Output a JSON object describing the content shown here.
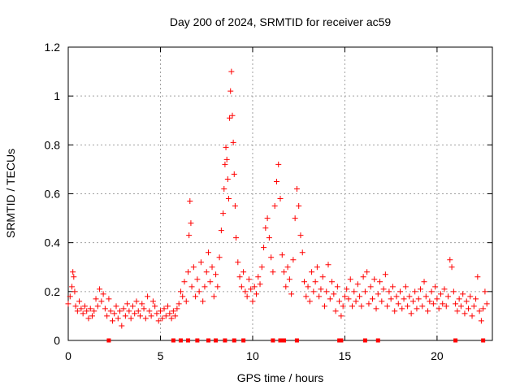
{
  "chart_data": {
    "type": "scatter",
    "title": "Day 200 of 2024, SRMTID for receiver ac59",
    "xlabel": "GPS time / hours",
    "ylabel": "SRMTID / TECUs",
    "xlim": [
      0,
      23
    ],
    "ylim": [
      0,
      1.2
    ],
    "xticks": [
      0,
      5,
      10,
      15,
      20
    ],
    "xtick_labels": [
      "0",
      "5",
      "10",
      "15",
      "20"
    ],
    "yticks": [
      0,
      0.2,
      0.4,
      0.6,
      0.8,
      1.0,
      1.2
    ],
    "ytick_labels": [
      "0",
      "0.2",
      "0.4",
      "0.6",
      "0.8",
      "1",
      "1.2"
    ],
    "grid": true,
    "marker": "+",
    "color": "#ff0000",
    "series": [
      {
        "name": "SRMTID",
        "points": [
          [
            0.0,
            0.15
          ],
          [
            0.1,
            0.18
          ],
          [
            0.2,
            0.22
          ],
          [
            0.25,
            0.28
          ],
          [
            0.3,
            0.26
          ],
          [
            0.35,
            0.2
          ],
          [
            0.4,
            0.14
          ],
          [
            0.5,
            0.12
          ],
          [
            0.6,
            0.16
          ],
          [
            0.7,
            0.13
          ],
          [
            0.8,
            0.11
          ],
          [
            0.9,
            0.14
          ],
          [
            1.0,
            0.12
          ],
          [
            1.1,
            0.09
          ],
          [
            1.2,
            0.13
          ],
          [
            1.3,
            0.1
          ],
          [
            1.4,
            0.12
          ],
          [
            1.5,
            0.17
          ],
          [
            1.6,
            0.14
          ],
          [
            1.7,
            0.21
          ],
          [
            1.8,
            0.16
          ],
          [
            1.9,
            0.19
          ],
          [
            2.0,
            0.13
          ],
          [
            2.1,
            0.1
          ],
          [
            2.2,
            0.17
          ],
          [
            2.3,
            0.12
          ],
          [
            2.4,
            0.08
          ],
          [
            2.5,
            0.11
          ],
          [
            2.6,
            0.14
          ],
          [
            2.7,
            0.09
          ],
          [
            2.8,
            0.12
          ],
          [
            2.9,
            0.06
          ],
          [
            3.0,
            0.13
          ],
          [
            3.1,
            0.1
          ],
          [
            3.2,
            0.15
          ],
          [
            3.3,
            0.12
          ],
          [
            3.4,
            0.09
          ],
          [
            3.5,
            0.14
          ],
          [
            3.6,
            0.11
          ],
          [
            3.7,
            0.16
          ],
          [
            3.8,
            0.12
          ],
          [
            3.9,
            0.1
          ],
          [
            4.0,
            0.15
          ],
          [
            4.1,
            0.13
          ],
          [
            4.2,
            0.09
          ],
          [
            4.3,
            0.18
          ],
          [
            4.4,
            0.12
          ],
          [
            4.5,
            0.1
          ],
          [
            4.6,
            0.16
          ],
          [
            4.7,
            0.14
          ],
          [
            4.8,
            0.11
          ],
          [
            4.9,
            0.08
          ],
          [
            5.0,
            0.12
          ],
          [
            5.1,
            0.09
          ],
          [
            5.2,
            0.13
          ],
          [
            5.3,
            0.1
          ],
          [
            5.4,
            0.14
          ],
          [
            5.5,
            0.11
          ],
          [
            5.6,
            0.09
          ],
          [
            5.7,
            0.12
          ],
          [
            5.8,
            0.1
          ],
          [
            5.9,
            0.13
          ],
          [
            6.0,
            0.15
          ],
          [
            6.1,
            0.2
          ],
          [
            6.2,
            0.18
          ],
          [
            6.3,
            0.24
          ],
          [
            6.4,
            0.16
          ],
          [
            6.5,
            0.28
          ],
          [
            6.55,
            0.43
          ],
          [
            6.6,
            0.57
          ],
          [
            6.65,
            0.48
          ],
          [
            6.7,
            0.22
          ],
          [
            6.8,
            0.3
          ],
          [
            6.9,
            0.18
          ],
          [
            7.0,
            0.25
          ],
          [
            7.1,
            0.2
          ],
          [
            7.2,
            0.32
          ],
          [
            7.3,
            0.16
          ],
          [
            7.4,
            0.22
          ],
          [
            7.5,
            0.28
          ],
          [
            7.6,
            0.36
          ],
          [
            7.7,
            0.24
          ],
          [
            7.8,
            0.3
          ],
          [
            7.9,
            0.18
          ],
          [
            8.0,
            0.27
          ],
          [
            8.1,
            0.22
          ],
          [
            8.2,
            0.34
          ],
          [
            8.3,
            0.45
          ],
          [
            8.4,
            0.52
          ],
          [
            8.45,
            0.62
          ],
          [
            8.5,
            0.72
          ],
          [
            8.55,
            0.79
          ],
          [
            8.6,
            0.74
          ],
          [
            8.65,
            0.66
          ],
          [
            8.7,
            0.58
          ],
          [
            8.75,
            0.91
          ],
          [
            8.8,
            1.02
          ],
          [
            8.85,
            1.1
          ],
          [
            8.9,
            0.92
          ],
          [
            8.95,
            0.81
          ],
          [
            9.0,
            0.68
          ],
          [
            9.05,
            0.55
          ],
          [
            9.1,
            0.42
          ],
          [
            9.2,
            0.32
          ],
          [
            9.3,
            0.26
          ],
          [
            9.4,
            0.22
          ],
          [
            9.5,
            0.28
          ],
          [
            9.6,
            0.2
          ],
          [
            9.7,
            0.18
          ],
          [
            9.8,
            0.25
          ],
          [
            9.9,
            0.21
          ],
          [
            10.0,
            0.16
          ],
          [
            10.1,
            0.22
          ],
          [
            10.2,
            0.19
          ],
          [
            10.3,
            0.26
          ],
          [
            10.4,
            0.23
          ],
          [
            10.5,
            0.3
          ],
          [
            10.6,
            0.38
          ],
          [
            10.7,
            0.46
          ],
          [
            10.8,
            0.5
          ],
          [
            10.9,
            0.42
          ],
          [
            11.0,
            0.34
          ],
          [
            11.1,
            0.28
          ],
          [
            11.2,
            0.55
          ],
          [
            11.3,
            0.65
          ],
          [
            11.4,
            0.72
          ],
          [
            11.5,
            0.58
          ],
          [
            11.6,
            0.35
          ],
          [
            11.7,
            0.28
          ],
          [
            11.8,
            0.22
          ],
          [
            11.9,
            0.3
          ],
          [
            12.0,
            0.25
          ],
          [
            12.1,
            0.19
          ],
          [
            12.2,
            0.33
          ],
          [
            12.3,
            0.5
          ],
          [
            12.4,
            0.62
          ],
          [
            12.5,
            0.55
          ],
          [
            12.6,
            0.43
          ],
          [
            12.7,
            0.36
          ],
          [
            12.8,
            0.24
          ],
          [
            12.9,
            0.18
          ],
          [
            13.0,
            0.22
          ],
          [
            13.1,
            0.16
          ],
          [
            13.2,
            0.28
          ],
          [
            13.3,
            0.2
          ],
          [
            13.4,
            0.24
          ],
          [
            13.5,
            0.3
          ],
          [
            13.6,
            0.18
          ],
          [
            13.7,
            0.21
          ],
          [
            13.8,
            0.26
          ],
          [
            13.9,
            0.14
          ],
          [
            14.0,
            0.2
          ],
          [
            14.1,
            0.31
          ],
          [
            14.2,
            0.17
          ],
          [
            14.3,
            0.24
          ],
          [
            14.4,
            0.19
          ],
          [
            14.5,
            0.12
          ],
          [
            14.6,
            0.22
          ],
          [
            14.7,
            0.16
          ],
          [
            14.8,
            0.1
          ],
          [
            14.9,
            0.14
          ],
          [
            15.0,
            0.18
          ],
          [
            15.1,
            0.21
          ],
          [
            15.2,
            0.17
          ],
          [
            15.3,
            0.25
          ],
          [
            15.4,
            0.14
          ],
          [
            15.5,
            0.2
          ],
          [
            15.6,
            0.16
          ],
          [
            15.7,
            0.23
          ],
          [
            15.8,
            0.18
          ],
          [
            15.9,
            0.14
          ],
          [
            16.0,
            0.26
          ],
          [
            16.1,
            0.2
          ],
          [
            16.2,
            0.28
          ],
          [
            16.3,
            0.15
          ],
          [
            16.4,
            0.22
          ],
          [
            16.5,
            0.17
          ],
          [
            16.6,
            0.25
          ],
          [
            16.7,
            0.13
          ],
          [
            16.8,
            0.19
          ],
          [
            16.9,
            0.24
          ],
          [
            17.0,
            0.16
          ],
          [
            17.1,
            0.21
          ],
          [
            17.2,
            0.27
          ],
          [
            17.3,
            0.14
          ],
          [
            17.4,
            0.2
          ],
          [
            17.5,
            0.17
          ],
          [
            17.6,
            0.22
          ],
          [
            17.7,
            0.12
          ],
          [
            17.8,
            0.18
          ],
          [
            17.9,
            0.15
          ],
          [
            18.0,
            0.2
          ],
          [
            18.1,
            0.13
          ],
          [
            18.2,
            0.17
          ],
          [
            18.3,
            0.22
          ],
          [
            18.4,
            0.14
          ],
          [
            18.5,
            0.18
          ],
          [
            18.6,
            0.11
          ],
          [
            18.7,
            0.16
          ],
          [
            18.8,
            0.2
          ],
          [
            18.9,
            0.13
          ],
          [
            19.0,
            0.17
          ],
          [
            19.1,
            0.21
          ],
          [
            19.2,
            0.14
          ],
          [
            19.3,
            0.24
          ],
          [
            19.4,
            0.18
          ],
          [
            19.5,
            0.12
          ],
          [
            19.6,
            0.16
          ],
          [
            19.7,
            0.2
          ],
          [
            19.8,
            0.15
          ],
          [
            19.9,
            0.22
          ],
          [
            20.0,
            0.17
          ],
          [
            20.1,
            0.13
          ],
          [
            20.2,
            0.19
          ],
          [
            20.3,
            0.15
          ],
          [
            20.4,
            0.21
          ],
          [
            20.5,
            0.14
          ],
          [
            20.6,
            0.18
          ],
          [
            20.7,
            0.33
          ],
          [
            20.8,
            0.3
          ],
          [
            20.9,
            0.2
          ],
          [
            21.0,
            0.15
          ],
          [
            21.1,
            0.12
          ],
          [
            21.2,
            0.17
          ],
          [
            21.3,
            0.14
          ],
          [
            21.4,
            0.19
          ],
          [
            21.5,
            0.11
          ],
          [
            21.6,
            0.16
          ],
          [
            21.7,
            0.13
          ],
          [
            21.8,
            0.18
          ],
          [
            21.9,
            0.1
          ],
          [
            22.0,
            0.14
          ],
          [
            22.1,
            0.17
          ],
          [
            22.2,
            0.26
          ],
          [
            22.3,
            0.12
          ],
          [
            22.4,
            0.08
          ],
          [
            22.5,
            0.13
          ],
          [
            22.6,
            0.2
          ],
          [
            22.7,
            0.15
          ]
        ]
      }
    ],
    "bottom_markers_x": [
      2.2,
      5.7,
      6.1,
      6.5,
      7.0,
      7.6,
      8.0,
      8.5,
      9.0,
      9.5,
      11.1,
      11.5,
      11.7,
      12.4,
      14.7,
      14.8,
      16.1,
      16.8,
      21.0,
      22.5
    ]
  }
}
